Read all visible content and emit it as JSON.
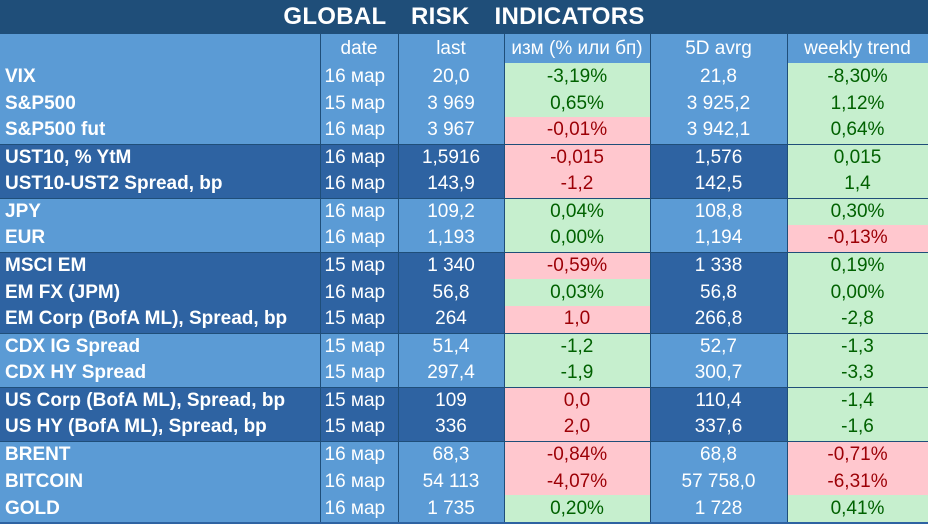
{
  "title": "GLOBAL   RISK   INDICATORS",
  "headers": {
    "name": "",
    "date": "date",
    "last": "last",
    "change": "изм (% или бп)",
    "avg": "5D avrg",
    "weekly": "weekly trend"
  },
  "rows": [
    {
      "name": "VIX",
      "date": "16 мар",
      "last": "20,0",
      "change": "-3,19%",
      "change_tone": "pos",
      "avg": "21,8",
      "weekly": "-8,30%",
      "weekly_tone": "pos",
      "group": "light",
      "start": true
    },
    {
      "name": "S&P500",
      "date": "15 мар",
      "last": "3 969",
      "change": "0,65%",
      "change_tone": "pos",
      "avg": "3 925,2",
      "weekly": "1,12%",
      "weekly_tone": "pos",
      "group": "light",
      "start": false
    },
    {
      "name": "S&P500 fut",
      "date": "16 мар",
      "last": "3 967",
      "change": "-0,01%",
      "change_tone": "neg",
      "avg": "3 942,1",
      "weekly": "0,64%",
      "weekly_tone": "pos",
      "group": "light",
      "start": false
    },
    {
      "name": "UST10, % YtM",
      "date": "16 мар",
      "last": "1,5916",
      "change": "-0,015",
      "change_tone": "neg",
      "avg": "1,576",
      "weekly": "0,015",
      "weekly_tone": "pos",
      "group": "dark",
      "start": true
    },
    {
      "name": "UST10-UST2 Spread, bp",
      "date": "16 мар",
      "last": "143,9",
      "change": "-1,2",
      "change_tone": "neg",
      "avg": "142,5",
      "weekly": "1,4",
      "weekly_tone": "pos",
      "group": "dark",
      "start": false
    },
    {
      "name": "JPY",
      "date": "16 мар",
      "last": "109,2",
      "change": "0,04%",
      "change_tone": "pos",
      "avg": "108,8",
      "weekly": "0,30%",
      "weekly_tone": "pos",
      "group": "light",
      "start": true
    },
    {
      "name": "EUR",
      "date": "16 мар",
      "last": "1,193",
      "change": "0,00%",
      "change_tone": "pos",
      "avg": "1,194",
      "weekly": "-0,13%",
      "weekly_tone": "neg",
      "group": "light",
      "start": false
    },
    {
      "name": "MSCI EM",
      "date": "15 мар",
      "last": "1 340",
      "change": "-0,59%",
      "change_tone": "neg",
      "avg": "1 338",
      "weekly": "0,19%",
      "weekly_tone": "pos",
      "group": "dark",
      "start": true
    },
    {
      "name": "EM FX (JPM)",
      "date": "16 мар",
      "last": "56,8",
      "change": "0,03%",
      "change_tone": "pos",
      "avg": "56,8",
      "weekly": "0,00%",
      "weekly_tone": "pos",
      "group": "dark",
      "start": false
    },
    {
      "name": "EM Corp (BofA ML), Spread, bp",
      "date": "15 мар",
      "last": "264",
      "change": "1,0",
      "change_tone": "neg",
      "avg": "266,8",
      "weekly": "-2,8",
      "weekly_tone": "pos",
      "group": "dark",
      "start": false
    },
    {
      "name": "CDX IG Spread",
      "date": "15 мар",
      "last": "51,4",
      "change": "-1,2",
      "change_tone": "pos",
      "avg": "52,7",
      "weekly": "-1,3",
      "weekly_tone": "pos",
      "group": "light",
      "start": true
    },
    {
      "name": "CDX HY Spread",
      "date": "15 мар",
      "last": "297,4",
      "change": "-1,9",
      "change_tone": "pos",
      "avg": "300,7",
      "weekly": "-3,3",
      "weekly_tone": "pos",
      "group": "light",
      "start": false
    },
    {
      "name": "US Corp (BofA ML), Spread, bp",
      "date": "15 мар",
      "last": "109",
      "change": "0,0",
      "change_tone": "neg",
      "avg": "110,4",
      "weekly": "-1,4",
      "weekly_tone": "pos",
      "group": "dark",
      "start": true
    },
    {
      "name": "US HY (BofA ML), Spread, bp",
      "date": "15 мар",
      "last": "336",
      "change": "2,0",
      "change_tone": "neg",
      "avg": "337,6",
      "weekly": "-1,6",
      "weekly_tone": "pos",
      "group": "dark",
      "start": false
    },
    {
      "name": "BRENT",
      "date": "16 мар",
      "last": "68,3",
      "change": "-0,84%",
      "change_tone": "neg",
      "avg": "68,8",
      "weekly": "-0,71%",
      "weekly_tone": "neg",
      "group": "light",
      "start": true
    },
    {
      "name": "BITCOIN",
      "date": "16 мар",
      "last": "54 113",
      "change": "-4,07%",
      "change_tone": "neg",
      "avg": "57 758,0",
      "weekly": "-6,31%",
      "weekly_tone": "neg",
      "group": "light",
      "start": false
    },
    {
      "name": "GOLD",
      "date": "16 мар",
      "last": "1 735",
      "change": "0,20%",
      "change_tone": "pos",
      "avg": "1 728",
      "weekly": "0,41%",
      "weekly_tone": "pos",
      "group": "light",
      "start": false
    }
  ]
}
